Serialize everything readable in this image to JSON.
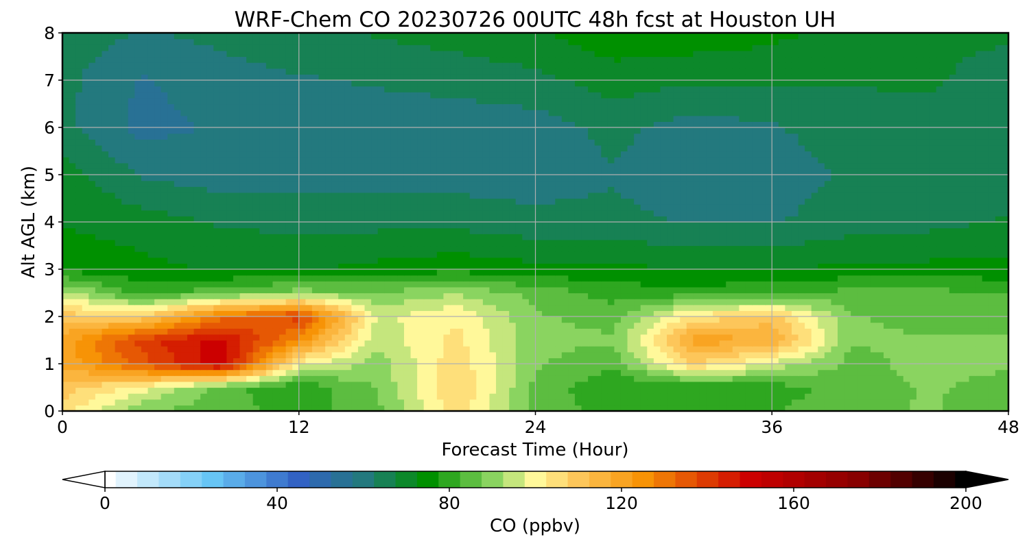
{
  "chart_data": {
    "type": "heatmap",
    "title": "WRF-Chem CO  20230726 00UTC 48h fcst at Houston UH",
    "xlabel": "Forecast Time (Hour)",
    "ylabel": "Alt AGL (km)",
    "xlim": [
      0,
      48
    ],
    "ylim": [
      0,
      8
    ],
    "xticks": [
      0,
      12,
      24,
      36,
      48
    ],
    "yticks": [
      0,
      1,
      2,
      3,
      4,
      5,
      6,
      7,
      8
    ],
    "grid": true,
    "x": [
      0,
      4,
      8,
      12,
      16,
      20,
      24,
      28,
      32,
      36,
      40,
      44,
      48
    ],
    "y": [
      0,
      0.5,
      1,
      1.5,
      2,
      2.5,
      3,
      4,
      5,
      6,
      7,
      8
    ],
    "z": [
      [
        105,
        88,
        85,
        80,
        86,
        105,
        86,
        80,
        80,
        82,
        86,
        88,
        84
      ],
      [
        110,
        100,
        85,
        78,
        88,
        108,
        86,
        78,
        78,
        80,
        85,
        88,
        86
      ],
      [
        118,
        135,
        152,
        100,
        90,
        106,
        88,
        84,
        108,
        96,
        86,
        89,
        88
      ],
      [
        120,
        140,
        150,
        125,
        94,
        104,
        89,
        88,
        120,
        118,
        88,
        88,
        88
      ],
      [
        110,
        108,
        130,
        140,
        96,
        102,
        88,
        86,
        104,
        110,
        88,
        86,
        86
      ],
      [
        95,
        80,
        86,
        90,
        88,
        92,
        86,
        80,
        80,
        82,
        84,
        84,
        83
      ],
      [
        76,
        74,
        72,
        72,
        74,
        76,
        74,
        74,
        72,
        72,
        74,
        74,
        74
      ],
      [
        72,
        70,
        67,
        66,
        66,
        66,
        64,
        64,
        62,
        62,
        65,
        66,
        68
      ],
      [
        70,
        62,
        60,
        60,
        60,
        60,
        60,
        62,
        58,
        60,
        63,
        64,
        65
      ],
      [
        64,
        56,
        58,
        60,
        60,
        60,
        60,
        64,
        60,
        62,
        65,
        66,
        64
      ],
      [
        64,
        57,
        60,
        62,
        63,
        64,
        66,
        70,
        68,
        68,
        68,
        68,
        66
      ],
      [
        66,
        62,
        64,
        66,
        68,
        70,
        72,
        76,
        76,
        74,
        70,
        68,
        68
      ]
    ],
    "colorbar": {
      "label": "CO  (ppbv)",
      "min": 0,
      "max": 200,
      "ticks": [
        0,
        40,
        80,
        120,
        160,
        200
      ],
      "extend": "both",
      "stops": [
        {
          "value": 0,
          "color": "#ffffff"
        },
        {
          "value": 25,
          "color": "#67c5f5"
        },
        {
          "value": 45,
          "color": "#3262c4"
        },
        {
          "value": 60,
          "color": "#23797e"
        },
        {
          "value": 75,
          "color": "#009000"
        },
        {
          "value": 90,
          "color": "#8ad460"
        },
        {
          "value": 100,
          "color": "#fff89a"
        },
        {
          "value": 110,
          "color": "#fdc65a"
        },
        {
          "value": 125,
          "color": "#f79306"
        },
        {
          "value": 150,
          "color": "#cc0000"
        },
        {
          "value": 175,
          "color": "#880000"
        },
        {
          "value": 200,
          "color": "#000000"
        }
      ]
    }
  }
}
